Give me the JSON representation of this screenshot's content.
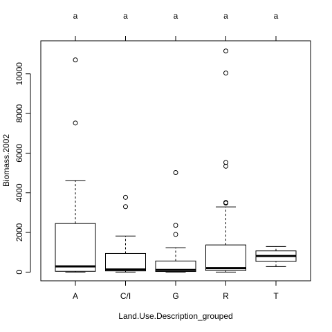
{
  "chart_data": {
    "type": "boxplot",
    "xlabel": "Land.Use.Description_grouped",
    "ylabel": "Biomass.2002",
    "categories": [
      "A",
      "C/I",
      "G",
      "R",
      "T"
    ],
    "group_letters": [
      "a",
      "a",
      "a",
      "a",
      "a"
    ],
    "y_ticks": [
      0,
      2000,
      4000,
      6000,
      8000,
      10000
    ],
    "y_tick_labels": [
      "0",
      "2000",
      "4000",
      "6000",
      "8000",
      "10000"
    ],
    "ylim": [
      -450,
      11550
    ],
    "grid": false,
    "boxes": [
      {
        "category": "A",
        "min": 0,
        "q1": 40,
        "median": 290,
        "q3": 2450,
        "max": 4620,
        "outliers": [
          7520,
          10700
        ]
      },
      {
        "category": "C/I",
        "min": 0,
        "q1": 60,
        "median": 130,
        "q3": 940,
        "max": 1820,
        "outliers": [
          3300,
          3770
        ]
      },
      {
        "category": "G",
        "min": 0,
        "q1": 30,
        "median": 110,
        "q3": 560,
        "max": 1230,
        "outliers": [
          1900,
          2360,
          5020
        ]
      },
      {
        "category": "R",
        "min": 0,
        "q1": 80,
        "median": 200,
        "q3": 1370,
        "max": 3290,
        "outliers": [
          3480,
          3510,
          5340,
          5530,
          10040,
          11150
        ]
      },
      {
        "category": "T",
        "min": 280,
        "q1": 540,
        "median": 810,
        "q3": 1070,
        "max": 1290,
        "outliers": []
      }
    ]
  }
}
